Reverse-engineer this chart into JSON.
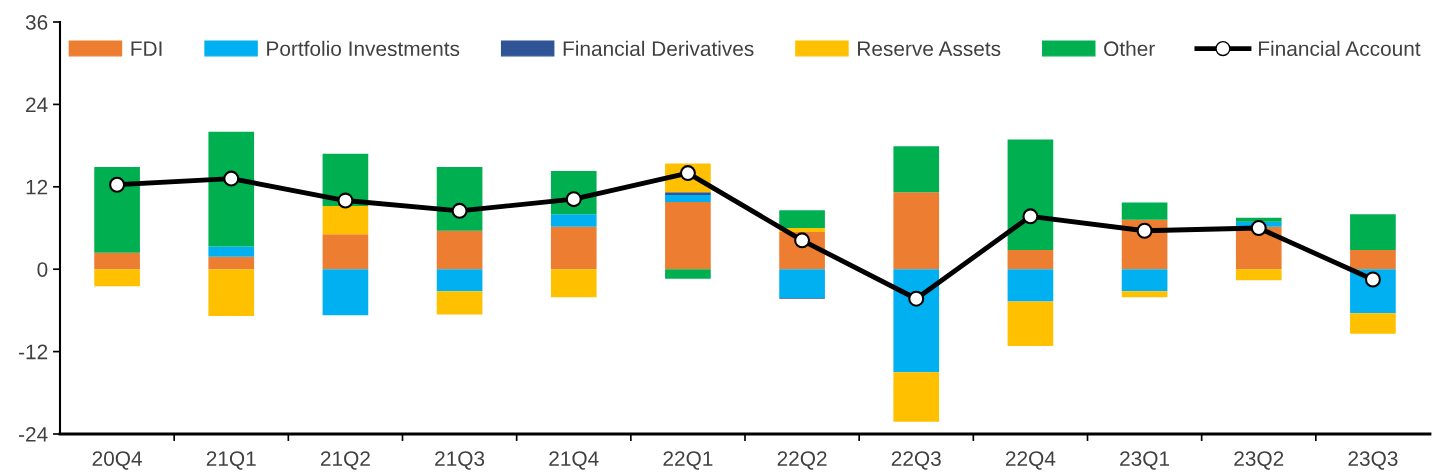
{
  "chart_data": {
    "type": "bar",
    "stacked": true,
    "categories": [
      "20Q4",
      "21Q1",
      "21Q2",
      "21Q3",
      "21Q4",
      "22Q1",
      "22Q2",
      "22Q3",
      "22Q4",
      "23Q1",
      "23Q2",
      "23Q3"
    ],
    "series": [
      {
        "name": "FDI",
        "color": "#ed7d31",
        "values": [
          2.4,
          1.8,
          5.1,
          5.6,
          6.2,
          9.8,
          5.4,
          11.2,
          2.8,
          7.2,
          6.2,
          2.8
        ]
      },
      {
        "name": "Portfolio Investments",
        "color": "#00b0f0",
        "values": [
          0,
          1.5,
          -6.7,
          -3.2,
          1.8,
          1.0,
          -4.2,
          -15.0,
          -4.7,
          -3.2,
          0.7,
          -6.4
        ]
      },
      {
        "name": "Financial Derivatives",
        "color": "#2f5597",
        "values": [
          0,
          0,
          0,
          0,
          0,
          0.4,
          -0.1,
          0,
          0,
          0,
          0,
          0
        ]
      },
      {
        "name": "Reserve Assets",
        "color": "#ffc000",
        "values": [
          -2.5,
          -6.8,
          4.1,
          -3.4,
          -4.1,
          4.2,
          0.6,
          -7.2,
          -6.5,
          -0.9,
          -1.6,
          -3.0
        ]
      },
      {
        "name": "Other",
        "color": "#00b050",
        "values": [
          12.5,
          16.7,
          7.6,
          9.3,
          6.3,
          -1.4,
          2.6,
          6.7,
          16.1,
          2.5,
          0.6,
          5.2
        ]
      },
      {
        "name": "Financial Account",
        "type": "line",
        "color": "#000000",
        "marker": "circle",
        "values": [
          12.3,
          13.2,
          10.0,
          8.5,
          10.2,
          14.0,
          4.2,
          -4.3,
          7.7,
          5.6,
          6.0,
          -1.5
        ]
      }
    ],
    "ylim": [
      -24,
      36
    ],
    "yticks": [
      -24,
      -12,
      0,
      12,
      24,
      36
    ],
    "grid": false,
    "legend": "top"
  }
}
